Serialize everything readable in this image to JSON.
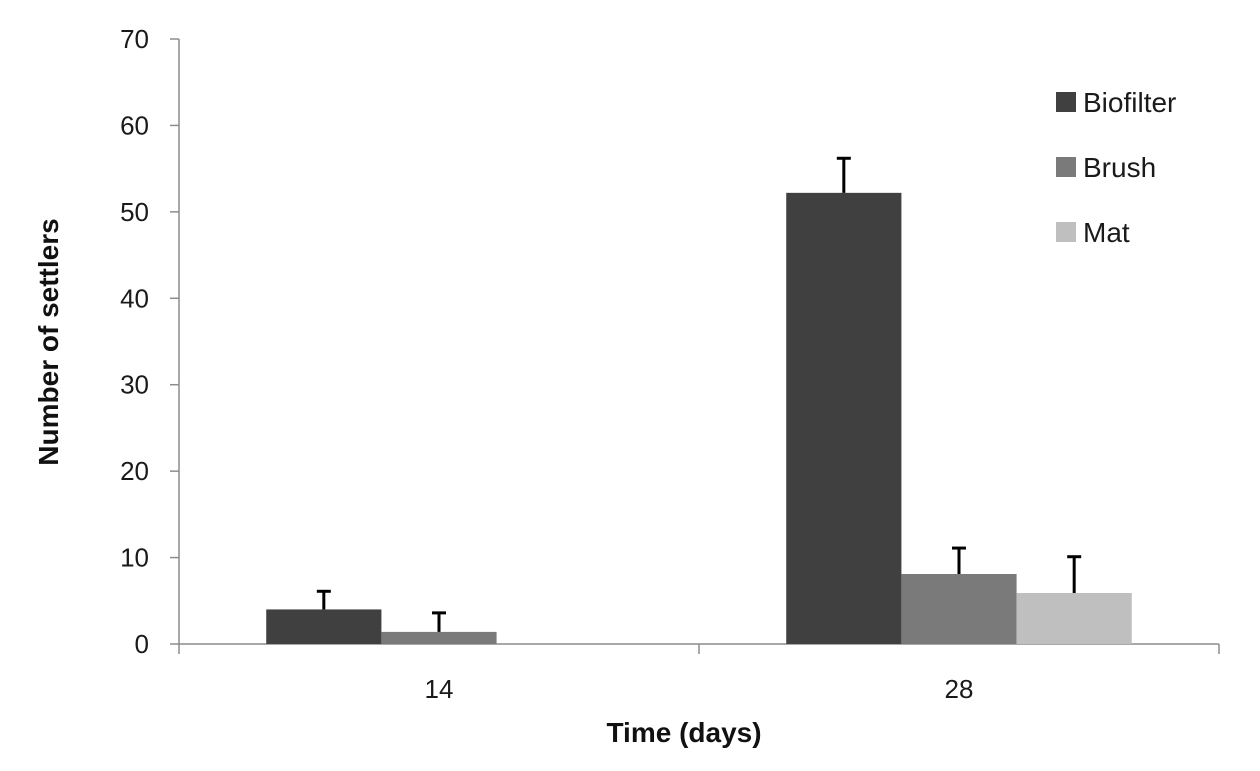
{
  "chart_data": {
    "type": "bar",
    "title": "",
    "xlabel": "Time (days)",
    "ylabel": "Number of settlers",
    "categories": [
      "14",
      "28"
    ],
    "ylim": [
      0,
      70
    ],
    "yticks": [
      0,
      10,
      20,
      30,
      40,
      50,
      60,
      70
    ],
    "grid": false,
    "legend_position": "top-right",
    "series": [
      {
        "name": "Biofilter",
        "color": "#404040",
        "values": [
          4,
          52.2
        ],
        "errors": [
          2.1,
          4.0
        ]
      },
      {
        "name": "Brush",
        "color": "#7a7a7a",
        "values": [
          1.4,
          8.1
        ],
        "errors": [
          2.2,
          3.0
        ]
      },
      {
        "name": "Mat",
        "color": "#bfbfbf",
        "values": [
          0,
          5.9
        ],
        "errors": [
          0,
          4.2
        ]
      }
    ]
  }
}
